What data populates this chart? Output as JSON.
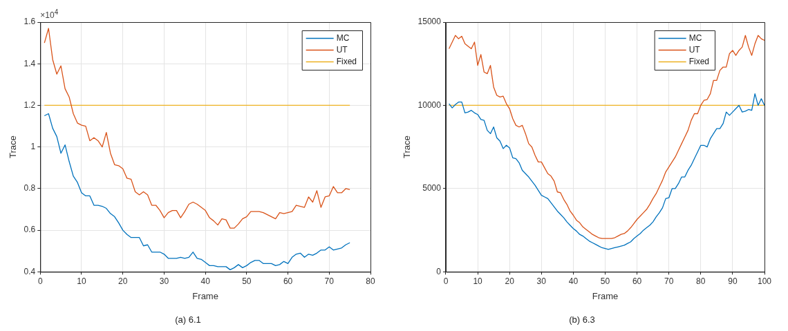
{
  "chart_data": [
    {
      "type": "line",
      "title": "(a) 6.1",
      "xlabel": "Frame",
      "ylabel": "Trace",
      "annotations": [
        "×10$^{4}$"
      ],
      "xlim": [
        0,
        80
      ],
      "xticks": [
        0,
        10,
        20,
        30,
        40,
        50,
        60,
        70,
        80
      ],
      "ylim": [
        0.4,
        1.6
      ],
      "yticks": [
        0.4,
        0.6,
        0.8,
        1,
        1.2,
        1.4,
        1.6
      ],
      "grid": true,
      "legend": "top right",
      "marker": "none",
      "line_style": "solid",
      "x": [
        1,
        2,
        3,
        4,
        5,
        6,
        7,
        8,
        9,
        10,
        11,
        12,
        13,
        14,
        15,
        16,
        17,
        18,
        19,
        20,
        21,
        22,
        23,
        24,
        25,
        26,
        27,
        28,
        29,
        30,
        31,
        32,
        33,
        34,
        35,
        36,
        37,
        38,
        39,
        40,
        41,
        42,
        43,
        44,
        45,
        46,
        47,
        48,
        49,
        50,
        51,
        52,
        53,
        54,
        55,
        56,
        57,
        58,
        59,
        60,
        61,
        62,
        63,
        64,
        65,
        66,
        67,
        68,
        69,
        70,
        71,
        72,
        73,
        74,
        75
      ],
      "series": [
        {
          "name": "MC",
          "color": "#0072bd",
          "values": [
            1.15,
            1.16,
            1.09,
            1.05,
            0.97,
            1.01,
            0.93,
            0.86,
            0.83,
            0.78,
            0.765,
            0.765,
            0.72,
            0.72,
            0.715,
            0.705,
            0.68,
            0.665,
            0.635,
            0.6,
            0.58,
            0.565,
            0.565,
            0.565,
            0.525,
            0.53,
            0.495,
            0.495,
            0.495,
            0.485,
            0.465,
            0.465,
            0.465,
            0.47,
            0.465,
            0.47,
            0.495,
            0.465,
            0.46,
            0.445,
            0.43,
            0.43,
            0.425,
            0.425,
            0.425,
            0.41,
            0.42,
            0.435,
            0.42,
            0.43,
            0.445,
            0.455,
            0.455,
            0.44,
            0.44,
            0.44,
            0.43,
            0.435,
            0.45,
            0.44,
            0.47,
            0.485,
            0.49,
            0.47,
            0.485,
            0.48,
            0.49,
            0.505,
            0.505,
            0.52,
            0.505,
            0.51,
            0.515,
            0.53,
            0.54
          ]
        },
        {
          "name": "UT",
          "color": "#d95319",
          "values": [
            1.5,
            1.57,
            1.42,
            1.35,
            1.39,
            1.28,
            1.24,
            1.16,
            1.115,
            1.105,
            1.1,
            1.03,
            1.045,
            1.03,
            1.0,
            1.07,
            0.97,
            0.915,
            0.91,
            0.895,
            0.85,
            0.845,
            0.785,
            0.77,
            0.785,
            0.77,
            0.72,
            0.72,
            0.695,
            0.66,
            0.685,
            0.695,
            0.695,
            0.66,
            0.69,
            0.725,
            0.735,
            0.725,
            0.71,
            0.695,
            0.66,
            0.645,
            0.625,
            0.655,
            0.65,
            0.61,
            0.61,
            0.63,
            0.655,
            0.665,
            0.69,
            0.69,
            0.69,
            0.685,
            0.675,
            0.665,
            0.655,
            0.685,
            0.68,
            0.685,
            0.69,
            0.72,
            0.715,
            0.71,
            0.76,
            0.735,
            0.79,
            0.71,
            0.76,
            0.765,
            0.81,
            0.78,
            0.78,
            0.8,
            0.795
          ]
        },
        {
          "name": "Fixed",
          "color": "#edb120",
          "x": [
            1,
            75
          ],
          "values": [
            1.2,
            1.2
          ]
        }
      ]
    },
    {
      "type": "line",
      "title": "(b) 6.3",
      "xlabel": "Frame",
      "ylabel": "Trace",
      "xlim": [
        0,
        100
      ],
      "xticks": [
        0,
        10,
        20,
        30,
        40,
        50,
        60,
        70,
        80,
        90,
        100
      ],
      "ylim": [
        0,
        15000
      ],
      "yticks": [
        0,
        5000,
        10000,
        15000
      ],
      "grid": true,
      "legend": "top right",
      "marker": "none",
      "line_style": "solid",
      "x": [
        1,
        2,
        3,
        4,
        5,
        6,
        7,
        8,
        9,
        10,
        11,
        12,
        13,
        14,
        15,
        16,
        17,
        18,
        19,
        20,
        21,
        22,
        23,
        24,
        25,
        26,
        27,
        28,
        29,
        30,
        31,
        32,
        33,
        34,
        35,
        36,
        37,
        38,
        39,
        40,
        41,
        42,
        43,
        44,
        45,
        46,
        47,
        48,
        49,
        50,
        51,
        52,
        53,
        54,
        55,
        56,
        57,
        58,
        59,
        60,
        61,
        62,
        63,
        64,
        65,
        66,
        67,
        68,
        69,
        70,
        71,
        72,
        73,
        74,
        75,
        76,
        77,
        78,
        79,
        80,
        81,
        82,
        83,
        84,
        85,
        86,
        87,
        88,
        89,
        90,
        91,
        92,
        93,
        94,
        95,
        96,
        97,
        98,
        99,
        100
      ],
      "series": [
        {
          "name": "MC",
          "color": "#0072bd",
          "values": [
            10100,
            9850,
            10050,
            10200,
            10200,
            9550,
            9600,
            9700,
            9550,
            9450,
            9150,
            9100,
            8500,
            8300,
            8700,
            8050,
            7850,
            7400,
            7600,
            7450,
            6850,
            6800,
            6550,
            6100,
            5900,
            5700,
            5450,
            5200,
            4900,
            4600,
            4500,
            4400,
            4150,
            3900,
            3650,
            3450,
            3250,
            3000,
            2800,
            2600,
            2450,
            2250,
            2150,
            2000,
            1850,
            1750,
            1650,
            1550,
            1450,
            1400,
            1350,
            1400,
            1450,
            1500,
            1550,
            1600,
            1700,
            1800,
            2000,
            2150,
            2300,
            2500,
            2650,
            2800,
            3000,
            3300,
            3550,
            3850,
            4400,
            4450,
            5000,
            5000,
            5300,
            5700,
            5700,
            6100,
            6400,
            6800,
            7200,
            7600,
            7600,
            7500,
            8000,
            8300,
            8600,
            8600,
            8900,
            9600,
            9400,
            9600,
            9800,
            10000,
            9600,
            9650,
            9750,
            9700,
            10700,
            10000,
            10400,
            10000
          ]
        },
        {
          "name": "UT",
          "color": "#d95319",
          "values": [
            13400,
            13800,
            14200,
            14000,
            14150,
            13700,
            13550,
            13400,
            13800,
            12400,
            13050,
            12000,
            11900,
            12400,
            11100,
            10600,
            10500,
            10550,
            10100,
            9800,
            9200,
            8800,
            8700,
            8800,
            8300,
            7700,
            7500,
            7000,
            6600,
            6600,
            6250,
            5900,
            5750,
            5450,
            4800,
            4750,
            4350,
            4050,
            3650,
            3400,
            3100,
            2950,
            2700,
            2550,
            2400,
            2250,
            2150,
            2050,
            2000,
            2000,
            2000,
            2000,
            2050,
            2150,
            2250,
            2300,
            2450,
            2650,
            2900,
            3150,
            3350,
            3550,
            3750,
            4050,
            4400,
            4700,
            5100,
            5500,
            6000,
            6300,
            6600,
            6900,
            7300,
            7700,
            8100,
            8500,
            9100,
            9500,
            9500,
            10000,
            10300,
            10350,
            10700,
            11500,
            11500,
            12100,
            12300,
            12300,
            13100,
            13300,
            13000,
            13300,
            13500,
            14200,
            13500,
            13000,
            13700,
            14200,
            14000,
            13900
          ]
        },
        {
          "name": "Fixed",
          "color": "#edb120",
          "x": [
            1,
            100
          ],
          "values": [
            10000,
            10000
          ]
        }
      ]
    }
  ]
}
